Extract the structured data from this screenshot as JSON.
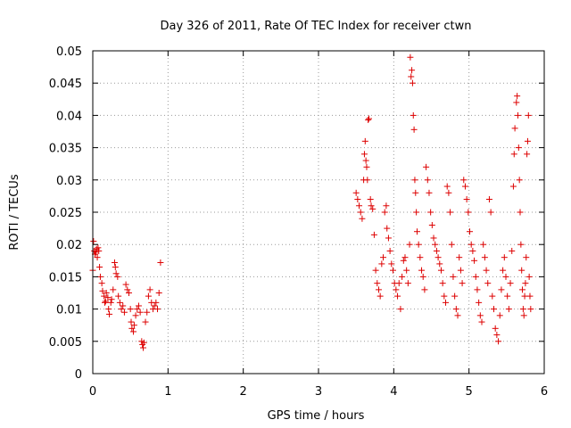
{
  "chart_data": {
    "type": "scatter",
    "title": "Day 326 of 2011, Rate Of TEC Index for receiver ctwn",
    "xlabel": "GPS time / hours",
    "ylabel": "ROTI / TECUs",
    "xlim": [
      0,
      6
    ],
    "ylim": [
      0,
      0.05
    ],
    "xticks": [
      "0",
      "1",
      "2",
      "3",
      "4",
      "5",
      "6"
    ],
    "yticks": [
      "0",
      "0.005",
      "0.01",
      "0.015",
      "0.02",
      "0.025",
      "0.03",
      "0.035",
      "0.04",
      "0.045",
      "0.05"
    ],
    "grid": true,
    "marker": "plus",
    "color": "#dd0000",
    "points": [
      [
        0.0,
        0.016
      ],
      [
        0.01,
        0.0205
      ],
      [
        0.02,
        0.019
      ],
      [
        0.03,
        0.0185
      ],
      [
        0.04,
        0.0188
      ],
      [
        0.05,
        0.0193
      ],
      [
        0.06,
        0.018
      ],
      [
        0.07,
        0.0195
      ],
      [
        0.08,
        0.019
      ],
      [
        0.09,
        0.0165
      ],
      [
        0.1,
        0.015
      ],
      [
        0.12,
        0.014
      ],
      [
        0.13,
        0.0128
      ],
      [
        0.15,
        0.012
      ],
      [
        0.16,
        0.011
      ],
      [
        0.17,
        0.0112
      ],
      [
        0.18,
        0.0125
      ],
      [
        0.2,
        0.0118
      ],
      [
        0.21,
        0.01
      ],
      [
        0.22,
        0.0092
      ],
      [
        0.24,
        0.011
      ],
      [
        0.25,
        0.0115
      ],
      [
        0.27,
        0.013
      ],
      [
        0.29,
        0.0172
      ],
      [
        0.3,
        0.0165
      ],
      [
        0.31,
        0.0155
      ],
      [
        0.33,
        0.015
      ],
      [
        0.34,
        0.012
      ],
      [
        0.36,
        0.011
      ],
      [
        0.38,
        0.01
      ],
      [
        0.4,
        0.0105
      ],
      [
        0.42,
        0.0095
      ],
      [
        0.44,
        0.0138
      ],
      [
        0.46,
        0.013
      ],
      [
        0.48,
        0.0125
      ],
      [
        0.5,
        0.01
      ],
      [
        0.51,
        0.008
      ],
      [
        0.52,
        0.007
      ],
      [
        0.54,
        0.0065
      ],
      [
        0.55,
        0.0075
      ],
      [
        0.57,
        0.009
      ],
      [
        0.59,
        0.01
      ],
      [
        0.61,
        0.0105
      ],
      [
        0.63,
        0.0095
      ],
      [
        0.65,
        0.005
      ],
      [
        0.66,
        0.0045
      ],
      [
        0.67,
        0.004
      ],
      [
        0.68,
        0.0048
      ],
      [
        0.7,
        0.008
      ],
      [
        0.72,
        0.0095
      ],
      [
        0.74,
        0.012
      ],
      [
        0.76,
        0.013
      ],
      [
        0.78,
        0.011
      ],
      [
        0.8,
        0.01
      ],
      [
        0.82,
        0.0105
      ],
      [
        0.84,
        0.011
      ],
      [
        0.86,
        0.01
      ],
      [
        0.88,
        0.0125
      ],
      [
        0.9,
        0.0172
      ],
      [
        3.5,
        0.028
      ],
      [
        3.52,
        0.027
      ],
      [
        3.54,
        0.026
      ],
      [
        3.56,
        0.025
      ],
      [
        3.58,
        0.024
      ],
      [
        3.6,
        0.03
      ],
      [
        3.61,
        0.034
      ],
      [
        3.62,
        0.036
      ],
      [
        3.63,
        0.033
      ],
      [
        3.64,
        0.032
      ],
      [
        3.65,
        0.03
      ],
      [
        3.66,
        0.0393
      ],
      [
        3.67,
        0.0395
      ],
      [
        3.69,
        0.027
      ],
      [
        3.7,
        0.026
      ],
      [
        3.72,
        0.0255
      ],
      [
        3.74,
        0.0215
      ],
      [
        3.76,
        0.016
      ],
      [
        3.78,
        0.014
      ],
      [
        3.8,
        0.013
      ],
      [
        3.82,
        0.012
      ],
      [
        3.84,
        0.017
      ],
      [
        3.86,
        0.018
      ],
      [
        3.88,
        0.025
      ],
      [
        3.9,
        0.026
      ],
      [
        3.91,
        0.0225
      ],
      [
        3.93,
        0.021
      ],
      [
        3.95,
        0.019
      ],
      [
        3.97,
        0.017
      ],
      [
        3.99,
        0.016
      ],
      [
        4.01,
        0.014
      ],
      [
        4.03,
        0.013
      ],
      [
        4.05,
        0.012
      ],
      [
        4.07,
        0.014
      ],
      [
        4.09,
        0.01
      ],
      [
        4.11,
        0.015
      ],
      [
        4.13,
        0.0175
      ],
      [
        4.15,
        0.018
      ],
      [
        4.17,
        0.016
      ],
      [
        4.19,
        0.014
      ],
      [
        4.21,
        0.02
      ],
      [
        4.22,
        0.049
      ],
      [
        4.23,
        0.046
      ],
      [
        4.24,
        0.047
      ],
      [
        4.25,
        0.045
      ],
      [
        4.26,
        0.04
      ],
      [
        4.27,
        0.0378
      ],
      [
        4.28,
        0.03
      ],
      [
        4.29,
        0.028
      ],
      [
        4.3,
        0.025
      ],
      [
        4.31,
        0.022
      ],
      [
        4.33,
        0.02
      ],
      [
        4.35,
        0.018
      ],
      [
        4.37,
        0.016
      ],
      [
        4.39,
        0.015
      ],
      [
        4.41,
        0.013
      ],
      [
        4.43,
        0.032
      ],
      [
        4.45,
        0.03
      ],
      [
        4.47,
        0.028
      ],
      [
        4.49,
        0.025
      ],
      [
        4.51,
        0.023
      ],
      [
        4.53,
        0.021
      ],
      [
        4.55,
        0.02
      ],
      [
        4.57,
        0.019
      ],
      [
        4.59,
        0.018
      ],
      [
        4.61,
        0.017
      ],
      [
        4.63,
        0.016
      ],
      [
        4.65,
        0.014
      ],
      [
        4.67,
        0.012
      ],
      [
        4.69,
        0.011
      ],
      [
        4.71,
        0.029
      ],
      [
        4.73,
        0.028
      ],
      [
        4.75,
        0.025
      ],
      [
        4.77,
        0.02
      ],
      [
        4.79,
        0.015
      ],
      [
        4.81,
        0.012
      ],
      [
        4.83,
        0.01
      ],
      [
        4.85,
        0.009
      ],
      [
        4.87,
        0.018
      ],
      [
        4.89,
        0.016
      ],
      [
        4.91,
        0.014
      ],
      [
        4.93,
        0.03
      ],
      [
        4.95,
        0.029
      ],
      [
        4.97,
        0.027
      ],
      [
        4.99,
        0.025
      ],
      [
        5.01,
        0.022
      ],
      [
        5.03,
        0.02
      ],
      [
        5.05,
        0.019
      ],
      [
        5.07,
        0.0175
      ],
      [
        5.09,
        0.015
      ],
      [
        5.11,
        0.013
      ],
      [
        5.13,
        0.011
      ],
      [
        5.15,
        0.009
      ],
      [
        5.17,
        0.008
      ],
      [
        5.19,
        0.02
      ],
      [
        5.21,
        0.018
      ],
      [
        5.23,
        0.016
      ],
      [
        5.25,
        0.014
      ],
      [
        5.27,
        0.027
      ],
      [
        5.29,
        0.025
      ],
      [
        5.31,
        0.012
      ],
      [
        5.33,
        0.01
      ],
      [
        5.35,
        0.007
      ],
      [
        5.37,
        0.006
      ],
      [
        5.39,
        0.005
      ],
      [
        5.41,
        0.009
      ],
      [
        5.43,
        0.013
      ],
      [
        5.45,
        0.016
      ],
      [
        5.47,
        0.018
      ],
      [
        5.49,
        0.015
      ],
      [
        5.51,
        0.012
      ],
      [
        5.53,
        0.01
      ],
      [
        5.55,
        0.014
      ],
      [
        5.57,
        0.019
      ],
      [
        5.59,
        0.029
      ],
      [
        5.6,
        0.034
      ],
      [
        5.61,
        0.038
      ],
      [
        5.63,
        0.042
      ],
      [
        5.64,
        0.043
      ],
      [
        5.65,
        0.04
      ],
      [
        5.66,
        0.035
      ],
      [
        5.67,
        0.03
      ],
      [
        5.68,
        0.025
      ],
      [
        5.69,
        0.02
      ],
      [
        5.7,
        0.016
      ],
      [
        5.71,
        0.013
      ],
      [
        5.72,
        0.01
      ],
      [
        5.73,
        0.009
      ],
      [
        5.74,
        0.012
      ],
      [
        5.75,
        0.014
      ],
      [
        5.76,
        0.018
      ],
      [
        5.77,
        0.034
      ],
      [
        5.78,
        0.036
      ],
      [
        5.79,
        0.04
      ],
      [
        5.8,
        0.015
      ],
      [
        5.81,
        0.012
      ],
      [
        5.82,
        0.01
      ]
    ]
  }
}
